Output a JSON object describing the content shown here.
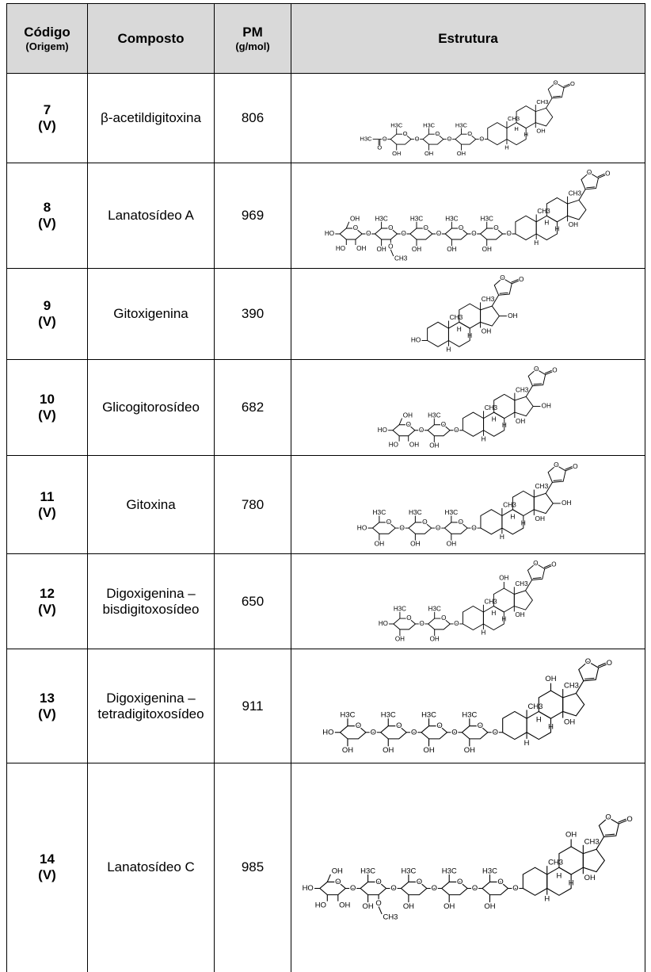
{
  "header": {
    "codigo": "Código",
    "origem": "(Origem)",
    "composto": "Composto",
    "pm": "PM",
    "pm_unit": "(g/mol)",
    "estrutura": "Estrutura"
  },
  "table": {
    "rows": [
      {
        "code": "7",
        "origin": "(V)",
        "name": "β-acetildigitoxina",
        "mw": 806,
        "labels": [
          "O",
          "O",
          "CH3",
          "CH3",
          "H",
          "H",
          "H",
          "OH",
          "O",
          "O",
          "H3C",
          "OH",
          "O",
          "O",
          "H3C",
          "OH",
          "O",
          "O",
          "H3C",
          "OH",
          "O",
          "O",
          "H3C"
        ]
      },
      {
        "code": "8",
        "origin": "(V)",
        "name": "Lanatosídeo A",
        "mw": 969,
        "labels": [
          "O",
          "O",
          "CH3",
          "CH3",
          "H",
          "H",
          "H",
          "OH",
          "O",
          "O",
          "H3C",
          "OH",
          "O",
          "O",
          "H3C",
          "OH",
          "O",
          "O",
          "H3C",
          "OH",
          "O",
          "O",
          "H3C",
          "OH",
          "O",
          "CH3",
          "O",
          "O",
          "OH",
          "HO",
          "HO",
          "OH"
        ]
      },
      {
        "code": "9",
        "origin": "(V)",
        "name": "Gitoxigenina",
        "mw": 390,
        "labels": [
          "O",
          "O",
          "CH3",
          "CH3",
          "H",
          "H",
          "H",
          "OH",
          "OH",
          "HO"
        ]
      },
      {
        "code": "10",
        "origin": "(V)",
        "name": "Glicogitorosídeo",
        "mw": 682,
        "labels": [
          "O",
          "O",
          "CH3",
          "CH3",
          "H",
          "H",
          "H",
          "OH",
          "OH",
          "O",
          "O",
          "H3C",
          "OH",
          "O",
          "O",
          "OH",
          "HO",
          "HO",
          "OH"
        ]
      },
      {
        "code": "11",
        "origin": "(V)",
        "name": "Gitoxina",
        "mw": 780,
        "labels": [
          "O",
          "O",
          "CH3",
          "CH3",
          "H",
          "H",
          "H",
          "OH",
          "OH",
          "O",
          "O",
          "H3C",
          "OH",
          "O",
          "O",
          "H3C",
          "OH",
          "O",
          "O",
          "H3C",
          "OH",
          "HO"
        ]
      },
      {
        "code": "12",
        "origin": "(V)",
        "name": "Digoxigenina – bisdigitoxosídeo",
        "mw": 650,
        "labels": [
          "O",
          "O",
          "CH3",
          "CH3",
          "H",
          "H",
          "H",
          "OH",
          "OH",
          "O",
          "O",
          "H3C",
          "OH",
          "O",
          "O",
          "H3C",
          "OH",
          "HO"
        ]
      },
      {
        "code": "13",
        "origin": "(V)",
        "name": "Digoxigenina – tetradigitoxosídeo",
        "mw": 911,
        "labels": [
          "O",
          "O",
          "CH3",
          "CH3",
          "H",
          "H",
          "H",
          "OH",
          "OH",
          "O",
          "O",
          "H3C",
          "OH",
          "O",
          "O",
          "H3C",
          "OH",
          "O",
          "O",
          "H3C",
          "OH",
          "O",
          "O",
          "H3C",
          "OH",
          "HO"
        ]
      },
      {
        "code": "14",
        "origin": "(V)",
        "name": "Lanatosídeo C",
        "mw": 985,
        "labels": [
          "O",
          "O",
          "CH3",
          "CH3",
          "H",
          "H",
          "H",
          "OH",
          "OH",
          "O",
          "O",
          "H3C",
          "OH",
          "O",
          "O",
          "H3C",
          "OH",
          "O",
          "O",
          "H3C",
          "OH",
          "O",
          "O",
          "H3C",
          "OH",
          "O",
          "CH3",
          "O",
          "O",
          "OH",
          "HO",
          "HO",
          "OH"
        ]
      }
    ]
  }
}
